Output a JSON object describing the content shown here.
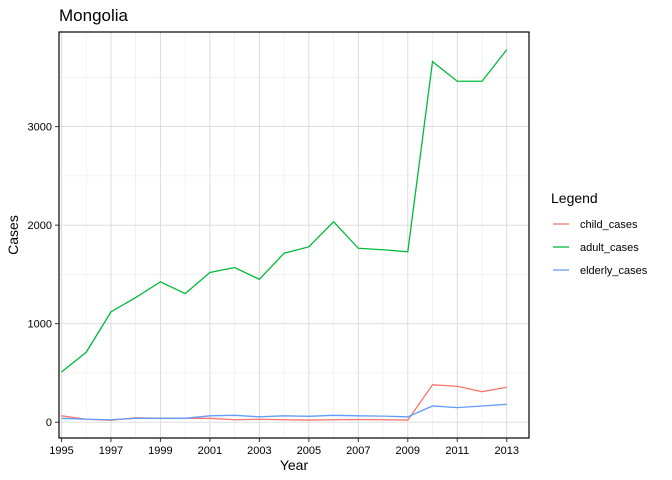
{
  "chart_data": {
    "type": "line",
    "title": "Mongolia",
    "xlabel": "Year",
    "ylabel": "Cases",
    "xlim": [
      1994.9,
      2013.9
    ],
    "ylim": [
      -160,
      3960
    ],
    "x_ticks": [
      1995,
      1997,
      1999,
      2001,
      2003,
      2005,
      2007,
      2009,
      2011,
      2013
    ],
    "y_ticks": [
      0,
      1000,
      2000,
      3000
    ],
    "grid": true,
    "legend": {
      "title": "Legend",
      "position": "right"
    },
    "x": [
      1995,
      1996,
      1997,
      1998,
      1999,
      2000,
      2001,
      2002,
      2003,
      2004,
      2005,
      2006,
      2007,
      2008,
      2009,
      2010,
      2011,
      2012,
      2013
    ],
    "series": [
      {
        "name": "child_cases",
        "color": "#F8766D",
        "values": [
          65,
          30,
          20,
          45,
          40,
          40,
          40,
          25,
          30,
          25,
          22,
          25,
          28,
          25,
          22,
          380,
          365,
          310,
          355
        ]
      },
      {
        "name": "adult_cases",
        "color": "#00BA38",
        "values": [
          510,
          710,
          1120,
          1265,
          1425,
          1305,
          1520,
          1570,
          1450,
          1715,
          1780,
          2035,
          1765,
          1750,
          1730,
          3660,
          3460,
          3460,
          3780
        ]
      },
      {
        "name": "elderly_cases",
        "color": "#619CFF",
        "values": [
          40,
          30,
          25,
          40,
          40,
          40,
          65,
          70,
          55,
          65,
          60,
          70,
          65,
          62,
          55,
          165,
          148,
          165,
          182
        ]
      }
    ]
  }
}
